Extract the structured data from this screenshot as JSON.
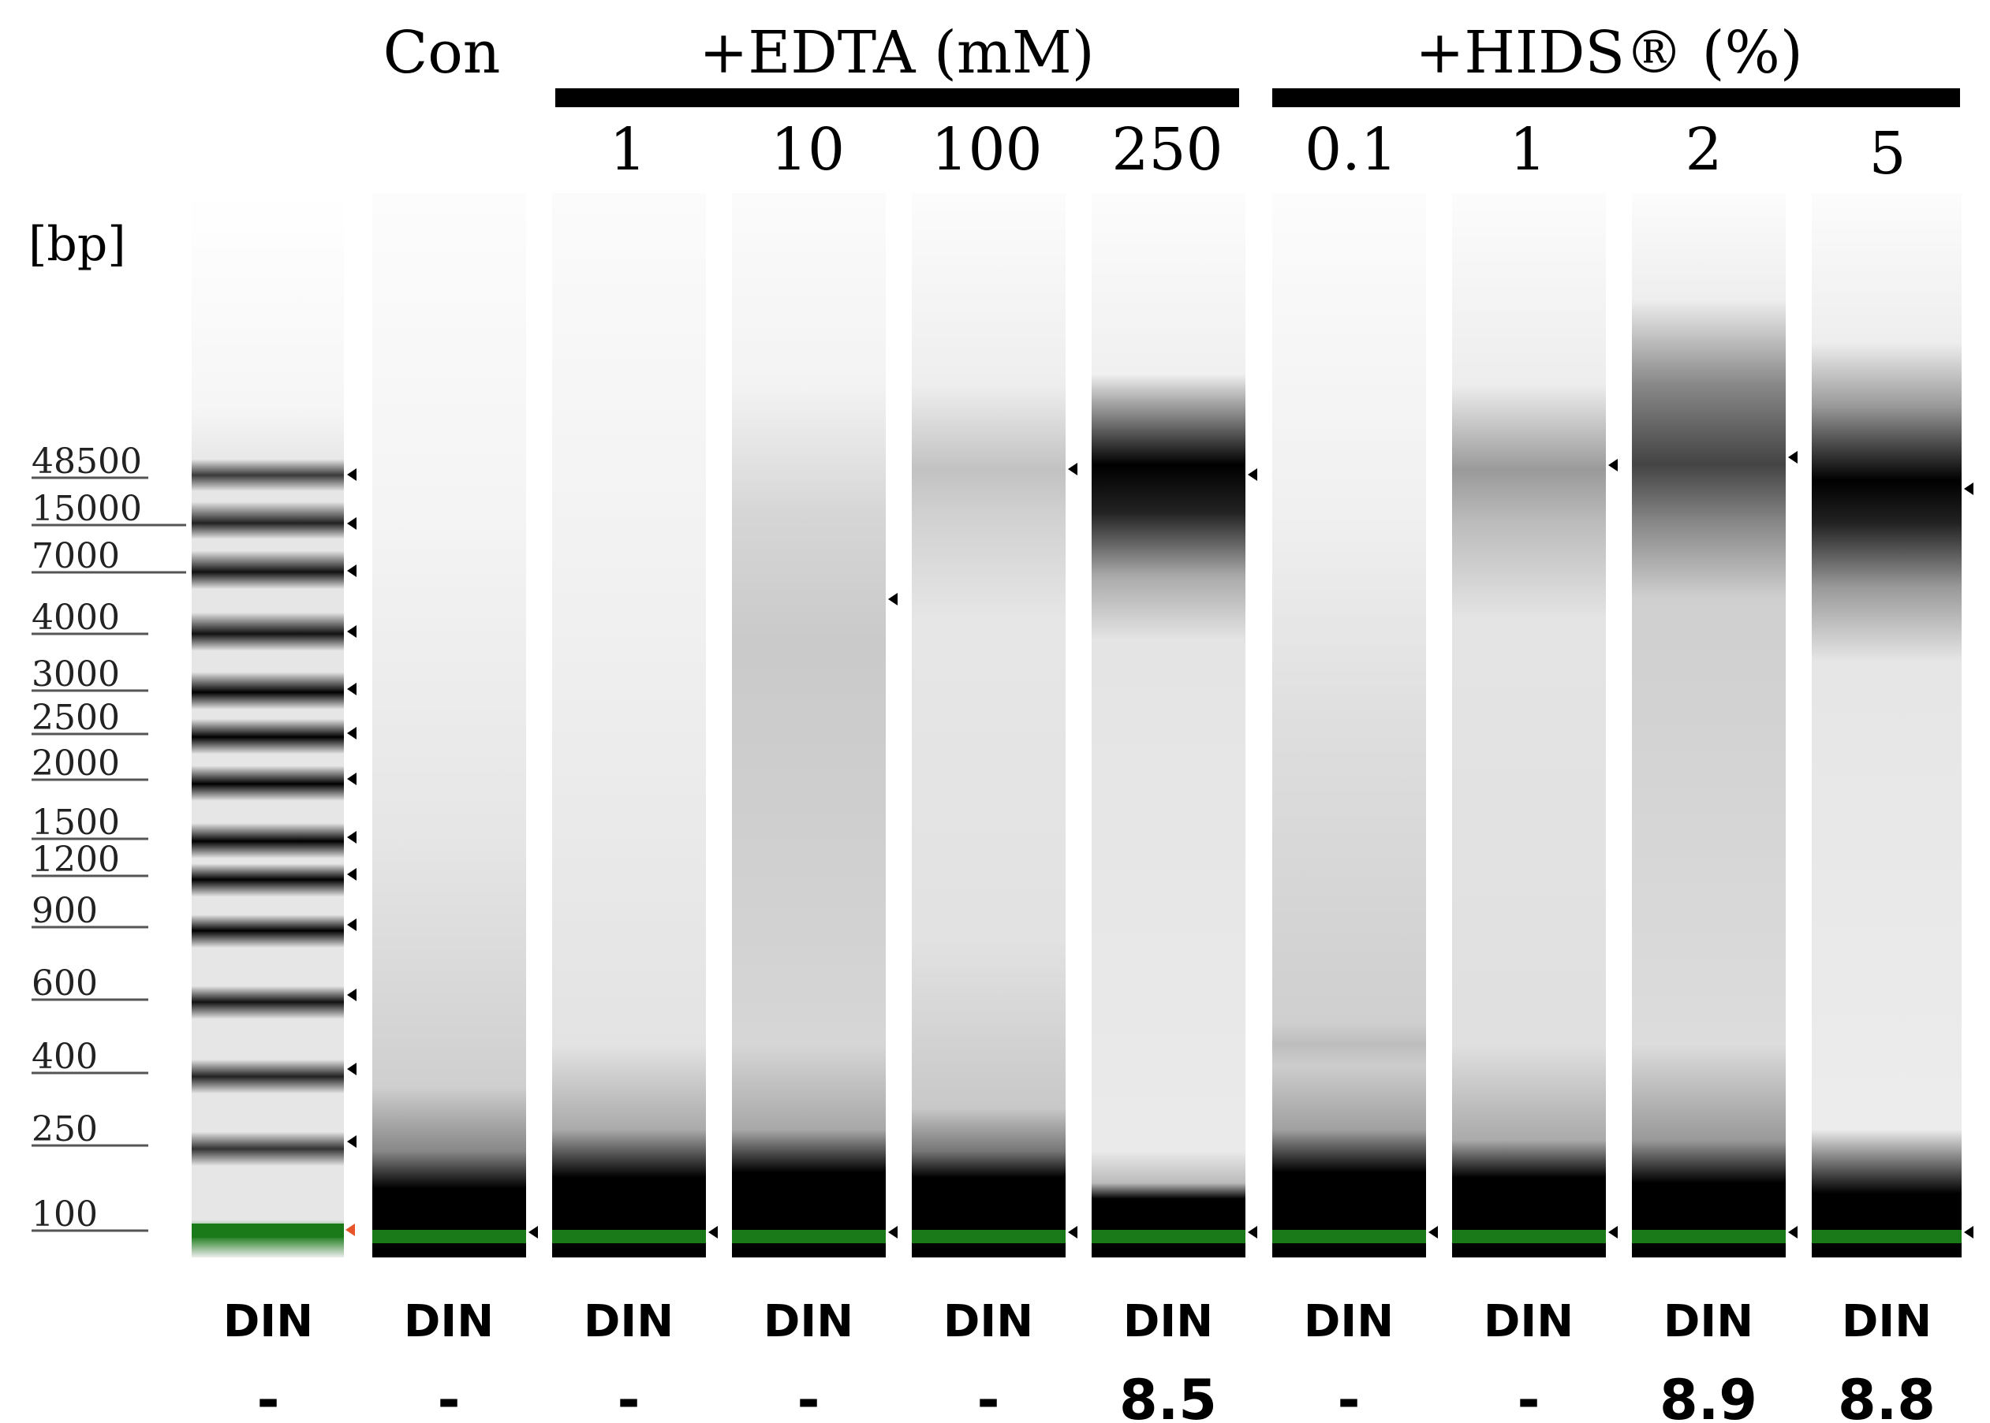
{
  "header": {
    "con_label": "Con",
    "groups": [
      {
        "label": "+EDTA (mM)",
        "concentrations": [
          "1",
          "10",
          "100",
          "250"
        ]
      },
      {
        "label": "+HIDS® (%)",
        "concentrations": [
          "0.1",
          "1",
          "2",
          "5"
        ]
      }
    ]
  },
  "ladder": {
    "unit_label": "[bp]",
    "sizes": [
      "48500",
      "15000",
      "7000",
      "4000",
      "3000",
      "2500",
      "2000",
      "1500",
      "1200",
      "900",
      "600",
      "400",
      "250",
      "100"
    ],
    "marker_color": "#1a7a1a",
    "marker_arrow_color": "#e8552a"
  },
  "lanes": [
    {
      "id": "ladder",
      "din_label": "DIN",
      "din_value": "-"
    },
    {
      "id": "con",
      "din_label": "DIN",
      "din_value": "-"
    },
    {
      "id": "edta-1",
      "din_label": "DIN",
      "din_value": "-"
    },
    {
      "id": "edta-10",
      "din_label": "DIN",
      "din_value": "-"
    },
    {
      "id": "edta-100",
      "din_label": "DIN",
      "din_value": "-"
    },
    {
      "id": "edta-250",
      "din_label": "DIN",
      "din_value": "8.5"
    },
    {
      "id": "hids-0.1",
      "din_label": "DIN",
      "din_value": "-"
    },
    {
      "id": "hids-1",
      "din_label": "DIN",
      "din_value": "-"
    },
    {
      "id": "hids-2",
      "din_label": "DIN",
      "din_value": "8.9"
    },
    {
      "id": "hids-5",
      "din_label": "DIN",
      "din_value": "8.8"
    }
  ],
  "colors": {
    "band": "#000000",
    "lower_marker": "#1a7a1a",
    "background": "#ffffff"
  }
}
